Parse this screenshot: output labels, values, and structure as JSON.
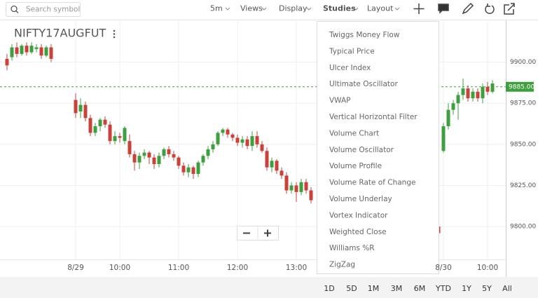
{
  "toolbar": {
    "search_placeholder": "Search symbol",
    "menus": [
      "5m",
      "Views",
      "Display",
      "Studies",
      "Layout"
    ]
  },
  "chart_data": {
    "type": "candlestick",
    "title": "NIFTY17AUGFUT",
    "categories": [
      null,
      null,
      null,
      null,
      null,
      null,
      null,
      null,
      null,
      null,
      null,
      null,
      null,
      null,
      "8/29",
      null,
      null,
      null,
      null,
      null,
      null,
      null,
      null,
      "10:00",
      null,
      null,
      null,
      null,
      null,
      null,
      null,
      null,
      null,
      null,
      null,
      "11:00",
      null,
      null,
      null,
      null,
      null,
      null,
      null,
      null,
      null,
      null,
      null,
      "12:00",
      null,
      null,
      null,
      null,
      null,
      null,
      null,
      null,
      null,
      null,
      null,
      "13:00",
      null,
      null,
      null,
      null,
      null,
      null,
      null,
      null,
      null,
      null,
      null,
      null,
      null,
      null,
      null,
      null,
      null,
      null,
      null,
      null,
      null,
      null,
      null,
      null,
      null,
      null,
      null,
      null,
      null,
      "8/30",
      null,
      null,
      null,
      null,
      null,
      null,
      null,
      null,
      "10:00",
      null,
      null
    ],
    "open": [
      9902,
      9903,
      9909,
      9905,
      9910,
      9906,
      9908,
      9909,
      9904,
      9909,
      null,
      null,
      null,
      null,
      9877,
      9870,
      9874,
      9866,
      9857,
      9861,
      9865,
      9862,
      9852,
      9855,
      9852,
      9852,
      9844,
      9839,
      9843,
      9845,
      9842,
      9838,
      9843,
      9847,
      9844,
      9842,
      9837,
      9833,
      9836,
      9832,
      9839,
      9843,
      9847,
      9850,
      9857,
      9859,
      9856,
      9854,
      9851,
      9853,
      9849,
      9855,
      9850,
      9846,
      9836,
      9840,
      9834,
      9831,
      9822,
      9825,
      9821,
      9827,
      9822,
      null,
      null,
      null,
      null,
      null,
      null,
      null,
      null,
      null,
      null,
      null,
      null,
      null,
      null,
      null,
      null,
      null,
      null,
      null,
      null,
      null,
      null,
      null,
      null,
      null,
      9800,
      9846,
      9861,
      9871,
      9875,
      9880,
      9884,
      9878,
      9882,
      9878,
      9885,
      9882,
      null
    ],
    "high": [
      9905,
      9911,
      9912,
      9911,
      9912,
      9912,
      9911,
      9911,
      9910,
      9911,
      null,
      null,
      null,
      null,
      9881,
      9878,
      9876,
      9868,
      9863,
      9866,
      9867,
      9864,
      9858,
      9857,
      9861,
      9856,
      9846,
      9845,
      9847,
      9846,
      9844,
      9845,
      9848,
      9849,
      9846,
      9843,
      9839,
      9838,
      9837,
      9840,
      9844,
      9849,
      9852,
      9858,
      9860,
      9860,
      9857,
      9856,
      9855,
      9855,
      9858,
      9858,
      9852,
      9848,
      9842,
      9841,
      9836,
      9833,
      9827,
      9827,
      9829,
      9829,
      9824,
      null,
      null,
      null,
      null,
      null,
      null,
      null,
      null,
      null,
      null,
      null,
      null,
      null,
      null,
      null,
      null,
      null,
      null,
      null,
      null,
      null,
      null,
      null,
      null,
      null,
      9801,
      9863,
      9875,
      9877,
      9882,
      9890,
      9886,
      9884,
      9884,
      9887,
      9888,
      9889,
      null
    ],
    "low": [
      9895,
      9901,
      9903,
      9904,
      9904,
      9905,
      9906,
      9902,
      9903,
      9900,
      null,
      null,
      null,
      null,
      9866,
      9866,
      9864,
      9855,
      9855,
      9858,
      9860,
      9850,
      9850,
      9851,
      9850,
      9842,
      9834,
      9835,
      9841,
      9838,
      9835,
      9836,
      9841,
      9842,
      9840,
      9835,
      9831,
      9830,
      9829,
      9830,
      9837,
      9841,
      9845,
      9849,
      9855,
      9854,
      9852,
      9849,
      9848,
      9847,
      9846,
      9848,
      9845,
      9834,
      9833,
      9832,
      9829,
      9820,
      9820,
      9815,
      9819,
      9820,
      9814,
      null,
      null,
      null,
      null,
      null,
      null,
      null,
      null,
      null,
      null,
      null,
      null,
      null,
      null,
      null,
      null,
      null,
      null,
      null,
      null,
      null,
      null,
      null,
      null,
      null,
      9794,
      9845,
      9859,
      9868,
      9865,
      9877,
      9876,
      9876,
      9876,
      9875,
      9880,
      9881,
      null
    ],
    "close": [
      9898,
      9909,
      9905,
      9910,
      9906,
      9910,
      9909,
      9904,
      9909,
      9902,
      null,
      null,
      null,
      null,
      9869,
      9874,
      9866,
      9857,
      9861,
      9865,
      9862,
      9852,
      9855,
      9854,
      9860,
      9844,
      9839,
      9843,
      9845,
      9842,
      9838,
      9843,
      9847,
      9844,
      9842,
      9837,
      9833,
      9836,
      9832,
      9839,
      9843,
      9847,
      9850,
      9857,
      9859,
      9856,
      9854,
      9851,
      9853,
      9849,
      9855,
      9850,
      9846,
      9836,
      9840,
      9834,
      9831,
      9822,
      9825,
      9821,
      9827,
      9822,
      9816,
      null,
      null,
      null,
      null,
      null,
      null,
      null,
      null,
      null,
      null,
      null,
      null,
      null,
      null,
      null,
      null,
      null,
      null,
      null,
      null,
      null,
      null,
      null,
      null,
      null,
      9796,
      9861,
      9871,
      9875,
      9880,
      9884,
      9878,
      9882,
      9878,
      9885,
      9882,
      9887,
      null
    ],
    "up_color": "#3f9e3f",
    "down_color": "#c9423a",
    "ylim": [
      9780,
      9925
    ],
    "yticks": [
      {
        "value": 9800,
        "label": "9800.00"
      },
      {
        "value": 9825,
        "label": "9825.00"
      },
      {
        "value": 9850,
        "label": "9850.00"
      },
      {
        "value": 9875,
        "label": "9875.00"
      },
      {
        "value": 9900,
        "label": "9900.00"
      }
    ],
    "price_line": {
      "value": 9885,
      "label": "9885.00"
    },
    "grid": true
  },
  "studies_menu": {
    "items": [
      "Twiggs Money Flow",
      "Typical Price",
      "Ulcer Index",
      "Ultimate Oscillator",
      "VWAP",
      "Vertical Horizontal Filter",
      "Volume Chart",
      "Volume Oscillator",
      "Volume Profile",
      "Volume Rate of Change",
      "Volume Underlay",
      "Vortex Indicator",
      "Weighted Close",
      "Williams %R",
      "ZigZag"
    ]
  },
  "ranges": [
    "1D",
    "5D",
    "1M",
    "3M",
    "6M",
    "YTD",
    "1Y",
    "5Y",
    "All"
  ]
}
